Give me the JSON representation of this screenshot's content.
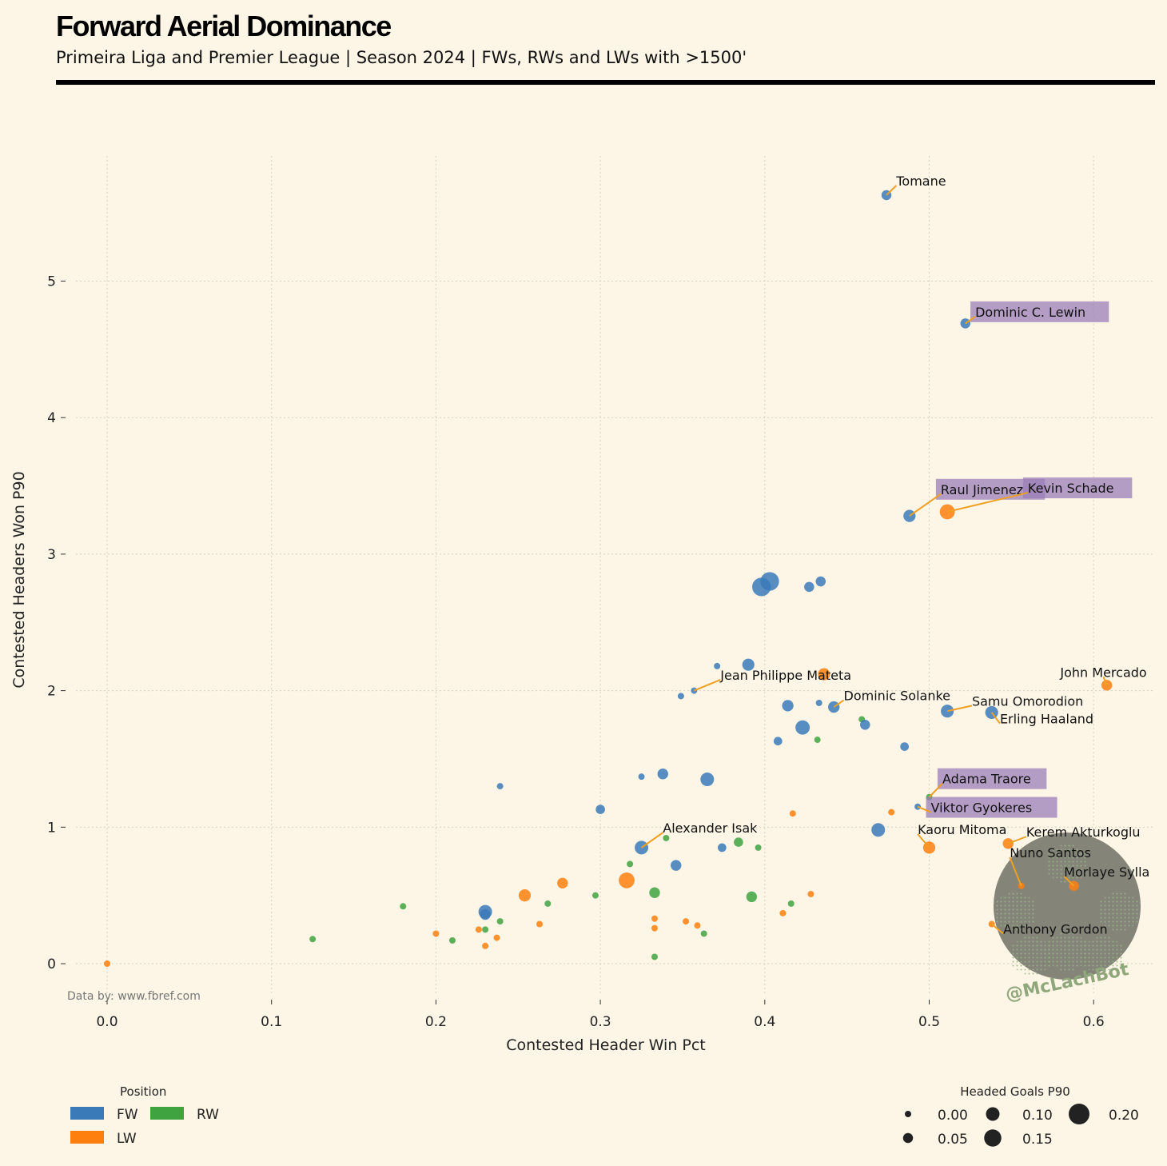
{
  "header": {
    "title": "Forward Aerial Dominance",
    "subtitle": "Primeira Liga and Premier League | Season 2024 | FWs, RWs and LWs with >1500'"
  },
  "credit": "Data by: www.fbref.com",
  "watermark": "@McLachBot",
  "colors": {
    "FW": "#3a7ab8",
    "LW": "#ff7f0e",
    "RW": "#3fa33f",
    "connector": "#f0a020",
    "highlight": "#9b7fb8",
    "background": "#fdf5e6"
  },
  "chart_data": {
    "type": "scatter",
    "xlabel": "Contested Header Win Pct",
    "ylabel": "Contested Headers Won P90",
    "xlim": [
      -0.03,
      0.64
    ],
    "ylim": [
      -0.3,
      6.0
    ],
    "xticks": [
      "0.0",
      "0.1",
      "0.2",
      "0.3",
      "0.4",
      "0.5",
      "0.6"
    ],
    "yticks": [
      "0",
      "1",
      "2",
      "3",
      "4",
      "5"
    ],
    "grid": true,
    "points": [
      {
        "x": 0.474,
        "y": 5.63,
        "pos": "FW",
        "g": 0.05
      },
      {
        "x": 0.522,
        "y": 4.69,
        "pos": "FW",
        "g": 0.05
      },
      {
        "x": 0.488,
        "y": 3.28,
        "pos": "FW",
        "g": 0.08
      },
      {
        "x": 0.511,
        "y": 3.31,
        "pos": "LW",
        "g": 0.12
      },
      {
        "x": 0.398,
        "y": 2.76,
        "pos": "FW",
        "g": 0.17
      },
      {
        "x": 0.403,
        "y": 2.8,
        "pos": "FW",
        "g": 0.17
      },
      {
        "x": 0.427,
        "y": 2.76,
        "pos": "FW",
        "g": 0.05
      },
      {
        "x": 0.434,
        "y": 2.8,
        "pos": "FW",
        "g": 0.05
      },
      {
        "x": 0.371,
        "y": 2.18,
        "pos": "FW",
        "g": 0.0
      },
      {
        "x": 0.39,
        "y": 2.19,
        "pos": "FW",
        "g": 0.08
      },
      {
        "x": 0.436,
        "y": 2.12,
        "pos": "LW",
        "g": 0.08
      },
      {
        "x": 0.357,
        "y": 2.0,
        "pos": "FW",
        "g": 0.0
      },
      {
        "x": 0.349,
        "y": 1.96,
        "pos": "FW",
        "g": 0.0
      },
      {
        "x": 0.414,
        "y": 1.89,
        "pos": "FW",
        "g": 0.07
      },
      {
        "x": 0.433,
        "y": 1.91,
        "pos": "FW",
        "g": 0.0
      },
      {
        "x": 0.442,
        "y": 1.88,
        "pos": "FW",
        "g": 0.07
      },
      {
        "x": 0.459,
        "y": 1.79,
        "pos": "RW",
        "g": 0.0
      },
      {
        "x": 0.461,
        "y": 1.75,
        "pos": "FW",
        "g": 0.05
      },
      {
        "x": 0.423,
        "y": 1.73,
        "pos": "FW",
        "g": 0.11
      },
      {
        "x": 0.408,
        "y": 1.63,
        "pos": "FW",
        "g": 0.03
      },
      {
        "x": 0.432,
        "y": 1.64,
        "pos": "RW",
        "g": 0.0
      },
      {
        "x": 0.485,
        "y": 1.59,
        "pos": "FW",
        "g": 0.03
      },
      {
        "x": 0.511,
        "y": 1.85,
        "pos": "FW",
        "g": 0.09
      },
      {
        "x": 0.538,
        "y": 1.84,
        "pos": "FW",
        "g": 0.09
      },
      {
        "x": 0.608,
        "y": 2.04,
        "pos": "LW",
        "g": 0.06
      },
      {
        "x": 0.325,
        "y": 1.37,
        "pos": "FW",
        "g": 0.0
      },
      {
        "x": 0.338,
        "y": 1.39,
        "pos": "FW",
        "g": 0.06
      },
      {
        "x": 0.365,
        "y": 1.35,
        "pos": "FW",
        "g": 0.1
      },
      {
        "x": 0.239,
        "y": 1.3,
        "pos": "FW",
        "g": 0.0
      },
      {
        "x": 0.3,
        "y": 1.13,
        "pos": "FW",
        "g": 0.04
      },
      {
        "x": 0.417,
        "y": 1.1,
        "pos": "LW",
        "g": 0.0
      },
      {
        "x": 0.477,
        "y": 1.11,
        "pos": "LW",
        "g": 0.0
      },
      {
        "x": 0.5,
        "y": 1.22,
        "pos": "RW",
        "g": 0.0
      },
      {
        "x": 0.493,
        "y": 1.15,
        "pos": "FW",
        "g": 0.0
      },
      {
        "x": 0.469,
        "y": 0.98,
        "pos": "FW",
        "g": 0.1
      },
      {
        "x": 0.5,
        "y": 0.85,
        "pos": "LW",
        "g": 0.08
      },
      {
        "x": 0.548,
        "y": 0.88,
        "pos": "LW",
        "g": 0.06
      },
      {
        "x": 0.325,
        "y": 0.85,
        "pos": "FW",
        "g": 0.1
      },
      {
        "x": 0.34,
        "y": 0.92,
        "pos": "RW",
        "g": 0.0
      },
      {
        "x": 0.374,
        "y": 0.85,
        "pos": "FW",
        "g": 0.03
      },
      {
        "x": 0.384,
        "y": 0.89,
        "pos": "RW",
        "g": 0.04
      },
      {
        "x": 0.396,
        "y": 0.85,
        "pos": "RW",
        "g": 0.0
      },
      {
        "x": 0.346,
        "y": 0.72,
        "pos": "FW",
        "g": 0.06
      },
      {
        "x": 0.318,
        "y": 0.73,
        "pos": "RW",
        "g": 0.0
      },
      {
        "x": 0.316,
        "y": 0.61,
        "pos": "LW",
        "g": 0.13
      },
      {
        "x": 0.277,
        "y": 0.59,
        "pos": "LW",
        "g": 0.06
      },
      {
        "x": 0.254,
        "y": 0.5,
        "pos": "LW",
        "g": 0.08
      },
      {
        "x": 0.297,
        "y": 0.5,
        "pos": "RW",
        "g": 0.0
      },
      {
        "x": 0.333,
        "y": 0.52,
        "pos": "RW",
        "g": 0.06
      },
      {
        "x": 0.392,
        "y": 0.49,
        "pos": "RW",
        "g": 0.06
      },
      {
        "x": 0.428,
        "y": 0.51,
        "pos": "LW",
        "g": 0.0
      },
      {
        "x": 0.268,
        "y": 0.44,
        "pos": "RW",
        "g": 0.0
      },
      {
        "x": 0.18,
        "y": 0.42,
        "pos": "RW",
        "g": 0.0
      },
      {
        "x": 0.23,
        "y": 0.38,
        "pos": "FW",
        "g": 0.1
      },
      {
        "x": 0.23,
        "y": 0.36,
        "pos": "FW",
        "g": 0.06
      },
      {
        "x": 0.416,
        "y": 0.44,
        "pos": "RW",
        "g": 0.0
      },
      {
        "x": 0.411,
        "y": 0.37,
        "pos": "LW",
        "g": 0.0
      },
      {
        "x": 0.333,
        "y": 0.33,
        "pos": "LW",
        "g": 0.0
      },
      {
        "x": 0.333,
        "y": 0.26,
        "pos": "LW",
        "g": 0.0
      },
      {
        "x": 0.352,
        "y": 0.31,
        "pos": "LW",
        "g": 0.0
      },
      {
        "x": 0.359,
        "y": 0.28,
        "pos": "LW",
        "g": 0.0
      },
      {
        "x": 0.363,
        "y": 0.22,
        "pos": "RW",
        "g": 0.0
      },
      {
        "x": 0.263,
        "y": 0.29,
        "pos": "LW",
        "g": 0.0
      },
      {
        "x": 0.239,
        "y": 0.31,
        "pos": "RW",
        "g": 0.0
      },
      {
        "x": 0.226,
        "y": 0.25,
        "pos": "LW",
        "g": 0.0
      },
      {
        "x": 0.23,
        "y": 0.25,
        "pos": "RW",
        "g": 0.0
      },
      {
        "x": 0.2,
        "y": 0.22,
        "pos": "LW",
        "g": 0.0
      },
      {
        "x": 0.237,
        "y": 0.19,
        "pos": "LW",
        "g": 0.0
      },
      {
        "x": 0.21,
        "y": 0.17,
        "pos": "RW",
        "g": 0.0
      },
      {
        "x": 0.125,
        "y": 0.18,
        "pos": "RW",
        "g": 0.0
      },
      {
        "x": 0.23,
        "y": 0.13,
        "pos": "LW",
        "g": 0.0
      },
      {
        "x": 0.333,
        "y": 0.05,
        "pos": "RW",
        "g": 0.0
      },
      {
        "x": 0.0,
        "y": 0.0,
        "pos": "LW",
        "g": 0.0
      },
      {
        "x": 0.556,
        "y": 0.57,
        "pos": "LW",
        "g": 0.0
      },
      {
        "x": 0.588,
        "y": 0.57,
        "pos": "LW",
        "g": 0.05
      },
      {
        "x": 0.538,
        "y": 0.29,
        "pos": "LW",
        "g": 0.0
      }
    ],
    "annotations": [
      {
        "name": "Tomane",
        "px": 0.474,
        "py": 5.63,
        "lx": 0.48,
        "ly": 5.7,
        "anchor": "start",
        "highlight": false
      },
      {
        "name": "Dominic C. Lewin",
        "px": 0.522,
        "py": 4.69,
        "lx": 0.528,
        "ly": 4.74,
        "anchor": "start",
        "highlight": true
      },
      {
        "name": "Raul Jimenez",
        "px": 0.488,
        "py": 3.28,
        "lx": 0.507,
        "ly": 3.44,
        "anchor": "start",
        "highlight": true
      },
      {
        "name": "Kevin Schade",
        "px": 0.511,
        "py": 3.31,
        "lx": 0.56,
        "ly": 3.45,
        "anchor": "start",
        "highlight": true
      },
      {
        "name": "Jean Philippe Mateta",
        "px": 0.357,
        "py": 2.0,
        "lx": 0.373,
        "ly": 2.08,
        "anchor": "start",
        "highlight": false
      },
      {
        "name": "Dominic Solanke",
        "px": 0.442,
        "py": 1.88,
        "lx": 0.448,
        "ly": 1.93,
        "anchor": "start",
        "highlight": false
      },
      {
        "name": "Samu Omorodion",
        "px": 0.511,
        "py": 1.85,
        "lx": 0.526,
        "ly": 1.89,
        "anchor": "start",
        "highlight": false
      },
      {
        "name": "Erling Haaland",
        "px": 0.538,
        "py": 1.84,
        "lx": 0.543,
        "ly": 1.76,
        "anchor": "start",
        "highlight": false
      },
      {
        "name": "John Mercado",
        "px": 0.608,
        "py": 2.04,
        "lx": 0.606,
        "ly": 2.1,
        "anchor": "middle",
        "highlight": false
      },
      {
        "name": "Adama Traore",
        "px": 0.5,
        "py": 1.22,
        "lx": 0.508,
        "ly": 1.32,
        "anchor": "start",
        "highlight": true
      },
      {
        "name": "Viktor Gyokeres",
        "px": 0.493,
        "py": 1.15,
        "lx": 0.501,
        "ly": 1.11,
        "anchor": "start",
        "highlight": true
      },
      {
        "name": "Kaoru Mitoma",
        "px": 0.5,
        "py": 0.85,
        "lx": 0.493,
        "ly": 0.95,
        "anchor": "start",
        "highlight": false
      },
      {
        "name": "Kerem Akturkoglu",
        "px": 0.548,
        "py": 0.88,
        "lx": 0.559,
        "ly": 0.93,
        "anchor": "start",
        "highlight": false
      },
      {
        "name": "Alexander Isak",
        "px": 0.325,
        "py": 0.85,
        "lx": 0.338,
        "ly": 0.96,
        "anchor": "start",
        "highlight": false
      },
      {
        "name": "Nuno Santos",
        "px": 0.556,
        "py": 0.57,
        "lx": 0.549,
        "ly": 0.78,
        "anchor": "start",
        "highlight": false
      },
      {
        "name": "Morlaye Sylla",
        "px": 0.588,
        "py": 0.57,
        "lx": 0.582,
        "ly": 0.64,
        "anchor": "start",
        "highlight": false
      },
      {
        "name": "Anthony Gordon",
        "px": 0.538,
        "py": 0.29,
        "lx": 0.545,
        "ly": 0.22,
        "anchor": "start",
        "highlight": false
      }
    ],
    "legend_position": {
      "title": "Position",
      "items": [
        {
          "label": "FW",
          "key": "FW"
        },
        {
          "label": "RW",
          "key": "RW"
        },
        {
          "label": "LW",
          "key": "LW"
        }
      ]
    },
    "legend_size": {
      "title": "Headed Goals P90",
      "items": [
        {
          "label": "0.00",
          "g": 0.0
        },
        {
          "label": "0.10",
          "g": 0.1
        },
        {
          "label": "0.20",
          "g": 0.2
        },
        {
          "label": "0.05",
          "g": 0.05
        },
        {
          "label": "0.15",
          "g": 0.15
        }
      ]
    }
  }
}
